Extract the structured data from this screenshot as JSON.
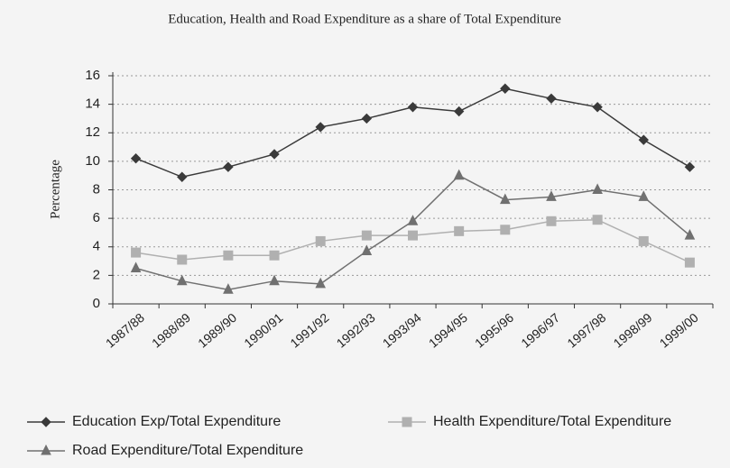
{
  "chart_data": {
    "type": "line",
    "title": "Education, Health and Road Expenditure as a share of Total Expenditure",
    "y_label": "Percentage",
    "categories": [
      "1987/88",
      "1988/89",
      "1989/90",
      "1990/91",
      "1991/92",
      "1992/93",
      "1993/94",
      "1994/95",
      "1995/96",
      "1996/97",
      "1997/98",
      "1998/99",
      "1999/00"
    ],
    "series": [
      {
        "name": "Education Exp/Total Expenditure",
        "color": "#3a3a3a",
        "marker": "diamond",
        "values": [
          10.2,
          8.9,
          9.6,
          10.5,
          12.4,
          13.0,
          13.8,
          13.5,
          15.1,
          14.4,
          13.8,
          11.5,
          9.6
        ]
      },
      {
        "name": "Health Expenditure/Total Expenditure",
        "color": "#b0b0b0",
        "marker": "square",
        "values": [
          3.6,
          3.1,
          3.4,
          3.4,
          4.4,
          4.8,
          4.8,
          5.1,
          5.2,
          5.8,
          5.9,
          4.4,
          2.9
        ]
      },
      {
        "name": "Road Expenditure/Total Expenditure",
        "color": "#707070",
        "marker": "triangle",
        "values": [
          2.5,
          1.6,
          1.0,
          1.6,
          1.4,
          3.7,
          5.8,
          9.0,
          7.3,
          7.5,
          8.0,
          7.5,
          4.8
        ]
      }
    ],
    "ylim": [
      0,
      16
    ],
    "yticks": [
      0,
      2,
      4,
      6,
      8,
      10,
      12,
      14,
      16
    ],
    "grid": true,
    "legend": "bottom"
  }
}
